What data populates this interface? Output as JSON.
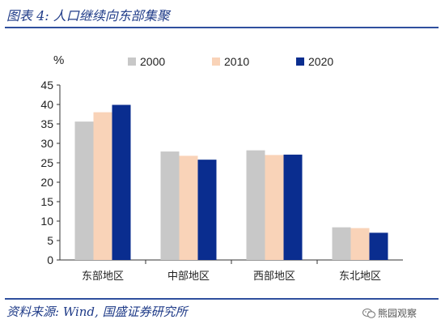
{
  "header": {
    "title": "图表 4:  人口继续向东部集聚"
  },
  "footer": {
    "source": "资料来源:  Wind,  国盛证券研究所",
    "watermark": "熊园观察"
  },
  "colors": {
    "series": [
      "#c8c8c8",
      "#f9d3b8",
      "#0a2d8f"
    ],
    "rule": "#2f4f9e",
    "title": "#1f3b88"
  },
  "chart_data": {
    "type": "bar",
    "title": "",
    "unit": "%",
    "xlabel": "",
    "ylabel": "",
    "categories": [
      "东部地区",
      "中部地区",
      "西部地区",
      "东北地区"
    ],
    "series": [
      {
        "name": "2000",
        "values": [
          35.6,
          27.9,
          28.2,
          8.4
        ]
      },
      {
        "name": "2010",
        "values": [
          38.0,
          26.8,
          27.0,
          8.2
        ]
      },
      {
        "name": "2020",
        "values": [
          39.9,
          25.8,
          27.1,
          7.0
        ]
      }
    ],
    "ylim": [
      0,
      45
    ],
    "yticks": [
      0,
      5,
      10,
      15,
      20,
      25,
      30,
      35,
      40,
      45
    ],
    "grid": false,
    "legend_position": "top"
  }
}
